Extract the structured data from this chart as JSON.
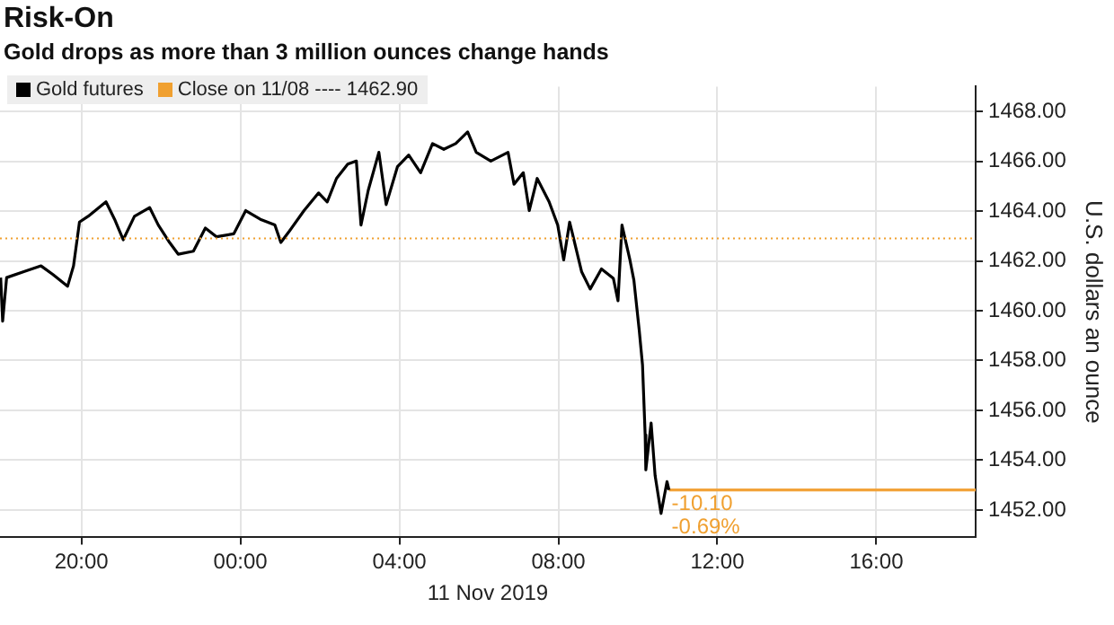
{
  "chart_data": {
    "type": "line",
    "title": "Risk-On",
    "subtitle": "Gold drops as more than 3 million ounces change hands",
    "xlabel": "11 Nov 2019",
    "ylabel": "U.S. dollars an ounce",
    "xlim": [
      "2019-11-10T17:57",
      "2019-11-11T18:30"
    ],
    "xticks": [
      {
        "value": "2019-11-10T20:00",
        "label": "20:00"
      },
      {
        "value": "2019-11-11T00:00",
        "label": "00:00"
      },
      {
        "value": "2019-11-11T04:00",
        "label": "04:00"
      },
      {
        "value": "2019-11-11T08:00",
        "label": "08:00"
      },
      {
        "value": "2019-11-11T12:00",
        "label": "12:00"
      },
      {
        "value": "2019-11-11T16:00",
        "label": "16:00"
      }
    ],
    "ylim": [
      1450.9,
      1469
    ],
    "yticks": [
      {
        "value": 1452,
        "label": "1452.00"
      },
      {
        "value": 1454,
        "label": "1454.00"
      },
      {
        "value": 1456,
        "label": "1456.00"
      },
      {
        "value": 1458,
        "label": "1458.00"
      },
      {
        "value": 1460,
        "label": "1460.00"
      },
      {
        "value": 1462,
        "label": "1462.00"
      },
      {
        "value": 1464,
        "label": "1464.00"
      },
      {
        "value": 1466,
        "label": "1466.00"
      },
      {
        "value": 1468,
        "label": "1468.00"
      }
    ],
    "grid": true,
    "legend": "top left",
    "series": [
      {
        "name": "Gold futures",
        "color": "#000000",
        "x": [
          "2019-11-10T17:58",
          "2019-11-10T18:01",
          "2019-11-10T18:07",
          "2019-11-10T18:33",
          "2019-11-10T18:59",
          "2019-11-10T19:17",
          "2019-11-10T19:39",
          "2019-11-10T19:48",
          "2019-11-10T19:57",
          "2019-11-10T20:10",
          "2019-11-10T20:37",
          "2019-11-10T20:50",
          "2019-11-10T21:03",
          "2019-11-10T21:20",
          "2019-11-10T21:43",
          "2019-11-10T21:56",
          "2019-11-10T22:13",
          "2019-11-10T22:26",
          "2019-11-10T22:49",
          "2019-11-10T23:07",
          "2019-11-10T23:24",
          "2019-11-10T23:50",
          "2019-11-11T00:08",
          "2019-11-11T00:30",
          "2019-11-11T00:52",
          "2019-11-11T01:01",
          "2019-11-11T01:14",
          "2019-11-11T01:36",
          "2019-11-11T01:58",
          "2019-11-11T02:11",
          "2019-11-11T02:25",
          "2019-11-11T02:42",
          "2019-11-11T02:55",
          "2019-11-11T03:02",
          "2019-11-11T03:13",
          "2019-11-11T03:29",
          "2019-11-11T03:40",
          "2019-11-11T03:57",
          "2019-11-11T04:14",
          "2019-11-11T04:32",
          "2019-11-11T04:50",
          "2019-11-11T05:07",
          "2019-11-11T05:25",
          "2019-11-11T05:43",
          "2019-11-11T05:56",
          "2019-11-11T06:18",
          "2019-11-11T06:44",
          "2019-11-11T06:53",
          "2019-11-11T07:07",
          "2019-11-11T07:16",
          "2019-11-11T07:28",
          "2019-11-11T07:46",
          "2019-11-11T07:59",
          "2019-11-11T08:08",
          "2019-11-11T08:17",
          "2019-11-11T08:35",
          "2019-11-11T08:48",
          "2019-11-11T09:05",
          "2019-11-11T09:23",
          "2019-11-11T09:30",
          "2019-11-11T09:36",
          "2019-11-11T09:48",
          "2019-11-11T09:54",
          "2019-11-11T10:02",
          "2019-11-11T10:07",
          "2019-11-11T10:11",
          "2019-11-11T10:12",
          "2019-11-11T10:20",
          "2019-11-11T10:26",
          "2019-11-11T10:35",
          "2019-11-11T10:44",
          "2019-11-11T10:47"
        ],
        "values": [
          1461.33,
          1459.58,
          1461.33,
          1461.57,
          1461.8,
          1461.45,
          1460.98,
          1461.8,
          1463.56,
          1463.79,
          1464.37,
          1463.67,
          1462.85,
          1463.79,
          1464.14,
          1463.44,
          1462.74,
          1462.27,
          1462.39,
          1463.32,
          1462.97,
          1463.09,
          1464.02,
          1463.67,
          1463.44,
          1462.74,
          1463.2,
          1464.02,
          1464.73,
          1464.37,
          1465.31,
          1465.89,
          1466.01,
          1463.44,
          1464.84,
          1466.36,
          1464.26,
          1465.78,
          1466.25,
          1465.54,
          1466.71,
          1466.48,
          1466.71,
          1467.18,
          1466.36,
          1466.01,
          1466.36,
          1465.08,
          1465.54,
          1464.02,
          1465.31,
          1464.37,
          1463.44,
          1462.04,
          1463.56,
          1461.57,
          1460.87,
          1461.68,
          1461.3,
          1460.4,
          1463.44,
          1462.04,
          1461.22,
          1459.23,
          1457.82,
          1455.02,
          1453.61,
          1455.49,
          1453.38,
          1451.86,
          1453.14,
          1452.8
        ]
      },
      {
        "color": "#f2a33a",
        "x": [
          "2019-11-11T10:47",
          "2019-11-11T18:30"
        ],
        "values": [
          1452.8,
          1452.8
        ]
      }
    ],
    "ref_lines": [
      {
        "axis": "y",
        "value": 1462.9,
        "label": "Close on 11/08 ---- 1462.90",
        "color": "#f0a030",
        "line_style": "dotted"
      }
    ],
    "annotations": [
      {
        "text": "-10.10",
        "x": "2019-11-11T10:51",
        "y": 1452.8
      },
      {
        "text": "-0.69%",
        "x": "2019-11-11T10:51",
        "y": 1452.8
      }
    ]
  }
}
